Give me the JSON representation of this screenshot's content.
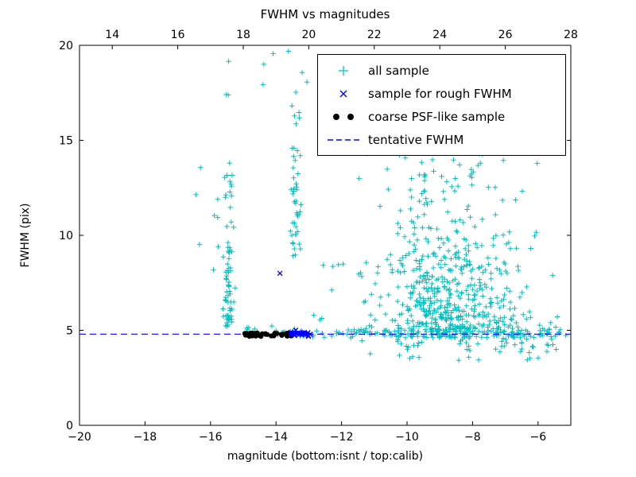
{
  "figure": {
    "title": "FWHM vs magnitudes",
    "xlabel": "magnitude (bottom:isnt / top:calib)",
    "ylabel": "FWHM (pix)"
  },
  "chart_data": {
    "type": "scatter",
    "title": "FWHM vs magnitudes",
    "xlabel": "magnitude (bottom:isnt / top:calib)",
    "ylabel": "FWHM (pix)",
    "xlim": [
      -20,
      -5
    ],
    "ylim": [
      0,
      20
    ],
    "top_axis_lim": [
      13,
      28
    ],
    "x_ticks": [
      -20,
      -18,
      -16,
      -14,
      -12,
      -10,
      -8,
      -6
    ],
    "top_ticks": [
      14,
      16,
      18,
      20,
      22,
      24,
      26,
      28
    ],
    "y_ticks": [
      0,
      5,
      10,
      15,
      20
    ],
    "grid": false,
    "tentative_fwhm_y": 4.8,
    "seed": 1337,
    "colors": {
      "all_sample": "#00bfbf",
      "rough_fwhm": "#0000ff",
      "psf_like": "#000000",
      "tentative_line": "#0000ff",
      "axis": "#000000"
    },
    "legend": {
      "position": "upper right",
      "items": [
        {
          "label": "all sample",
          "marker": "plus",
          "color": "#00bfbf"
        },
        {
          "label": "sample for rough FWHM",
          "marker": "x",
          "color": "#0000ff"
        },
        {
          "label": "coarse PSF-like sample",
          "marker": "dot",
          "color": "#000000"
        },
        {
          "label": "tentative FWHM",
          "marker": "dashed-line",
          "color": "#0000ff"
        }
      ]
    },
    "series": [
      {
        "name": "all sample",
        "marker": "plus",
        "color": "#00bfbf",
        "z": 1,
        "clusters": [
          {
            "n": 170,
            "x": {
              "dist": "uniform",
              "min": -15.05,
              "max": -5.15
            },
            "y": {
              "dist": "normal",
              "mean": 4.85,
              "sd": 0.18
            }
          },
          {
            "n": 60,
            "x": {
              "dist": "uniform",
              "min": -10.6,
              "max": -5.3
            },
            "y": {
              "dist": "normal",
              "mean": 4.8,
              "sd": 0.45
            }
          },
          {
            "n": 28,
            "x": {
              "dist": "uniform",
              "min": -11.2,
              "max": -5.5
            },
            "y": {
              "dist": "uniform",
              "min": 3.4,
              "max": 4.4
            }
          },
          {
            "n": 60,
            "x": {
              "dist": "normal",
              "mean": -15.45,
              "sd": 0.07
            },
            "y": {
              "dist": "halfnormal",
              "base": 4.9,
              "sd": 2.4,
              "max": 19.5
            }
          },
          {
            "n": 16,
            "x": {
              "dist": "normal",
              "mean": -15.45,
              "sd": 0.07
            },
            "y": {
              "dist": "uniform",
              "min": 9,
              "max": 19.4
            }
          },
          {
            "n": 8,
            "x": {
              "dist": "uniform",
              "min": -16.45,
              "max": -15.7
            },
            "y": {
              "dist": "uniform",
              "min": 8,
              "max": 15.5
            }
          },
          {
            "n": 6,
            "x": {
              "dist": "uniform",
              "min": -14.6,
              "max": -12.6
            },
            "y": {
              "dist": "uniform",
              "min": 17.8,
              "max": 19.7
            }
          },
          {
            "n": 40,
            "x": {
              "dist": "normal",
              "mean": -13.42,
              "sd": 0.09
            },
            "y": {
              "dist": "uniform",
              "min": 8.8,
              "max": 14.6
            }
          },
          {
            "n": 6,
            "x": {
              "dist": "normal",
              "mean": -13.35,
              "sd": 0.1
            },
            "y": {
              "dist": "uniform",
              "min": 15,
              "max": 17.6
            }
          },
          {
            "n": 430,
            "x": {
              "dist": "normal",
              "mean": -8.6,
              "sd": 1.05,
              "min": -11.3,
              "max": -5.4
            },
            "y": {
              "dist": "halfnormal",
              "base": 4.6,
              "sd": 2.6,
              "max": 15
            }
          },
          {
            "n": 80,
            "x": {
              "dist": "normal",
              "mean": -8.8,
              "sd": 1.2,
              "min": -11.5,
              "max": -5.6
            },
            "y": {
              "dist": "uniform",
              "min": 8,
              "max": 14.8
            }
          },
          {
            "n": 45,
            "x": {
              "dist": "normal",
              "mean": -9.45,
              "sd": 0.12
            },
            "y": {
              "dist": "uniform",
              "min": 5,
              "max": 13.2
            }
          },
          {
            "n": 10,
            "x": {
              "dist": "uniform",
              "min": -9.2,
              "max": -5.6
            },
            "y": {
              "dist": "uniform",
              "min": 13,
              "max": 18.2
            }
          },
          {
            "n": 3,
            "x": {
              "dist": "uniform",
              "min": -7.6,
              "max": -6.1
            },
            "y": {
              "dist": "uniform",
              "min": 16.5,
              "max": 19.9
            }
          },
          {
            "n": 14,
            "x": {
              "dist": "uniform",
              "min": -12.9,
              "max": -11.2
            },
            "y": {
              "dist": "uniform",
              "min": 5.2,
              "max": 9
            }
          }
        ]
      },
      {
        "name": "tentative FWHM",
        "type": "hline",
        "y": 4.8,
        "color": "#0000ff",
        "dash": true,
        "z": 2
      },
      {
        "name": "coarse PSF-like sample",
        "marker": "dot",
        "color": "#000000",
        "z": 3,
        "clusters": [
          {
            "n": 42,
            "x": {
              "dist": "uniform",
              "min": -15.02,
              "max": -13.5
            },
            "y": {
              "dist": "normal",
              "mean": 4.78,
              "sd": 0.05
            }
          }
        ]
      },
      {
        "name": "sample for rough FWHM",
        "marker": "x",
        "color": "#0000ff",
        "z": 4,
        "clusters": [
          {
            "n": 26,
            "x": {
              "dist": "uniform",
              "min": -13.55,
              "max": -12.95
            },
            "y": {
              "dist": "normal",
              "mean": 4.82,
              "sd": 0.07
            }
          }
        ],
        "points": [
          [
            -13.88,
            8.0
          ]
        ]
      }
    ]
  }
}
